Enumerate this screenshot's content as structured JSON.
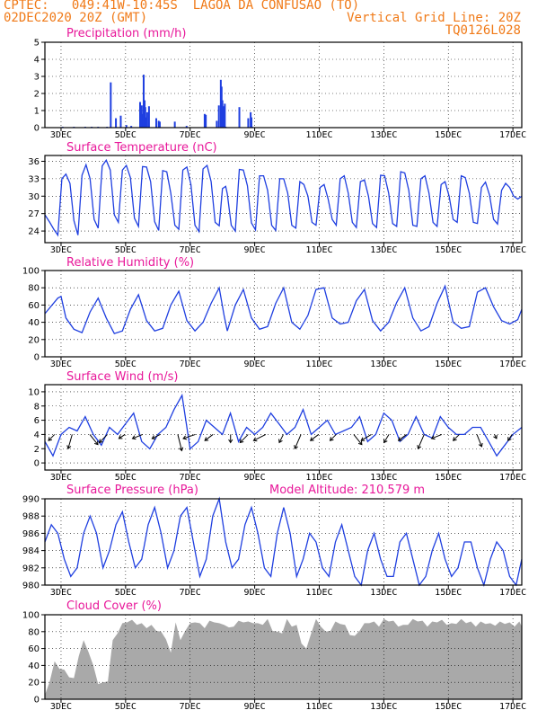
{
  "header": {
    "line1": "CPTEC:   049:41W-10:45S  LAGOA DA CONFUSAO (TO)",
    "line2_left": "02DEC2020 20Z (GMT)",
    "line2_right": "Vertical Grid Line: 20Z",
    "line3_right": "TQ0126L028"
  },
  "colors": {
    "header": "#f07a18",
    "title": "#e8189a",
    "line": "#1f3fe0",
    "cloud": "#a9a9a9",
    "frame": "#000000",
    "grid": "#000000"
  },
  "x_ticks": [
    "3DEC",
    "5DEC",
    "7DEC",
    "9DEC",
    "11DEC",
    "13DEC",
    "15DEC",
    "17DEC"
  ],
  "chart_data": [
    {
      "type": "bar",
      "title": "Precipitation (mm/h)",
      "xlabel": "",
      "ylabel": "",
      "ylim": [
        0,
        5
      ],
      "yticks": [
        0,
        1,
        2,
        3,
        4,
        5
      ],
      "x_unit": "days since 02DEC2020 20Z",
      "series": [
        {
          "x": [
            1.1,
            1.8,
            2.5,
            2.9,
            3.3,
            3.85,
            4.08,
            4.4,
            4.7,
            5.05,
            5.35,
            5.9,
            6.0,
            6.08,
            6.12,
            6.18,
            6.22,
            6.27,
            6.34,
            6.45,
            6.9,
            7.05,
            7.12,
            8.05,
            8.78,
            9.9,
            9.97,
            10.65,
            10.78,
            10.9,
            10.95,
            11.0,
            11.05,
            11.1,
            11.15,
            11.2,
            12.05,
            12.6,
            12.75,
            12.8,
            12.85
          ],
          "values": [
            0.05,
            0.05,
            0.05,
            0.05,
            0.05,
            0.05,
            2.65,
            0.55,
            0.7,
            0.15,
            0.1,
            1.5,
            1.3,
            0.8,
            3.1,
            1.6,
            1.2,
            0.6,
            0.9,
            1.25,
            0.55,
            0.4,
            0.35,
            0.35,
            0.1,
            0.8,
            0.75,
            0.4,
            1.3,
            2.8,
            2.4,
            1.6,
            1.05,
            1.25,
            1.4,
            0.05,
            1.2,
            0.55,
            0.9,
            0.6,
            0.05
          ]
        }
      ]
    },
    {
      "type": "line",
      "title": "Surface Temperature (nC)",
      "ylim": [
        22,
        37
      ],
      "yticks": [
        24,
        27,
        30,
        33,
        36
      ],
      "x_unit": "days since 02DEC2020 20Z",
      "series": [
        {
          "x": [
            0,
            0.3,
            0.55,
            0.8,
            1.05,
            1.3,
            1.55,
            1.8,
            2.05,
            2.3,
            2.55,
            2.8,
            3.05,
            3.3,
            3.55,
            3.8,
            4.05,
            4.3,
            4.55,
            4.8,
            5.05,
            5.3,
            5.55,
            5.8,
            6.05,
            6.3,
            6.55,
            6.8,
            7.05,
            7.3,
            7.55,
            7.8,
            8.05,
            8.3,
            8.55,
            8.8,
            9.05,
            9.3,
            9.55,
            9.8,
            10.05,
            10.3,
            10.55,
            10.8,
            11.0,
            11.2,
            11.3,
            11.55,
            11.8,
            12.05,
            12.3,
            12.55,
            12.8,
            13.05,
            13.3,
            13.55,
            13.8,
            14.05,
            14.3,
            14.55,
            14.8,
            15.05,
            15.3,
            15.55,
            15.8,
            16.05,
            16.3,
            16.55,
            16.8,
            17.05,
            17.3,
            17.55,
            17.8,
            18.05,
            18.3,
            18.55,
            18.8,
            19.05,
            19.3,
            19.55,
            19.8,
            20.05,
            20.3,
            20.55,
            20.8,
            21.05,
            21.3,
            21.55,
            21.8,
            22.05,
            22.3,
            22.55,
            22.8,
            23.05,
            23.3,
            23.55,
            23.8,
            24.05,
            24.3,
            24.55,
            24.8,
            25.05,
            25.3,
            25.55,
            25.8,
            26.05,
            26.3,
            26.55,
            26.8,
            27.05,
            27.3,
            27.55,
            27.8,
            28.05,
            28.3,
            28.55,
            28.8,
            29.05,
            29.3,
            29.55
          ],
          "values": [
            26.8,
            25.5,
            24.3,
            23.3,
            33.0,
            33.8,
            32.2,
            25.8,
            23.3,
            33.6,
            35.4,
            33.0,
            26.0,
            24.5,
            35.2,
            36.2,
            34.5,
            26.8,
            25.5,
            34.5,
            35.3,
            33.2,
            26.2,
            24.8,
            35.1,
            35.0,
            32.5,
            25.6,
            24.1,
            34.4,
            34.2,
            30.5,
            25.0,
            24.3,
            34.5,
            35.0,
            32.0,
            25.0,
            23.9,
            34.7,
            35.3,
            32.5,
            25.5,
            24.9,
            31.3,
            31.7,
            30.4,
            25.0,
            24.0,
            34.6,
            34.5,
            31.8,
            25.4,
            24.2,
            33.5,
            33.5,
            31.0,
            25.0,
            24.1,
            33.0,
            33.0,
            30.5,
            25.0,
            24.5,
            32.5,
            32.0,
            30.0,
            25.5,
            25.0,
            31.5,
            32.0,
            29.5,
            26.0,
            25.0,
            33.0,
            33.5,
            30.5,
            25.5,
            24.6,
            32.5,
            32.8,
            30.0,
            25.3,
            24.6,
            33.6,
            33.5,
            30.5,
            25.3,
            24.8,
            34.2,
            34.0,
            31.0,
            25.0,
            24.8,
            33.0,
            33.5,
            30.5,
            25.5,
            24.8,
            32.0,
            32.5,
            30.0,
            26.0,
            25.5,
            33.5,
            33.2,
            30.5,
            25.5,
            25.3,
            31.5,
            32.4,
            30.2,
            26.0,
            25.2,
            31.0,
            32.2,
            31.5,
            30.0,
            29.5,
            30.0
          ]
        }
      ]
    },
    {
      "type": "line",
      "title": "Relative Humidity (%)",
      "ylim": [
        0,
        100
      ],
      "yticks": [
        0,
        20,
        40,
        60,
        80,
        100
      ],
      "x_unit": "days since 02DEC2020 20Z",
      "series": [
        {
          "x": [
            0,
            0.8,
            1.0,
            1.3,
            1.8,
            2.3,
            2.8,
            3.3,
            3.8,
            4.3,
            4.8,
            5.3,
            5.8,
            6.3,
            6.8,
            7.3,
            7.8,
            8.3,
            8.8,
            9.3,
            9.8,
            10.3,
            10.8,
            11.1,
            11.3,
            11.8,
            12.3,
            12.8,
            13.3,
            13.8,
            14.3,
            14.8,
            15.3,
            15.8,
            16.3,
            16.8,
            17.3,
            17.8,
            18.3,
            18.8,
            19.3,
            19.8,
            20.3,
            20.8,
            21.3,
            21.8,
            22.3,
            22.8,
            23.3,
            23.8,
            24.3,
            24.8,
            25.3,
            25.8,
            26.3,
            26.8,
            27.3,
            27.8,
            28.3,
            28.8,
            29.3,
            29.55
          ],
          "values": [
            50,
            68,
            70,
            45,
            32,
            28,
            52,
            68,
            45,
            27,
            30,
            55,
            72,
            42,
            30,
            33,
            60,
            76,
            42,
            30,
            40,
            62,
            80,
            48,
            30,
            60,
            78,
            45,
            32,
            35,
            62,
            80,
            40,
            32,
            48,
            78,
            80,
            45,
            38,
            40,
            65,
            78,
            42,
            30,
            40,
            63,
            80,
            45,
            30,
            35,
            62,
            82,
            40,
            33,
            35,
            75,
            80,
            58,
            42,
            38,
            43,
            55
          ]
        }
      ]
    },
    {
      "type": "line",
      "title": "Surface Wind (m/s)",
      "ylim": [
        -1,
        11
      ],
      "yticks": [
        0,
        2,
        4,
        6,
        8,
        10
      ],
      "x_unit": "days since 02DEC2020 20Z",
      "series": [
        {
          "x": [
            0,
            0.5,
            1.0,
            1.5,
            2.0,
            2.5,
            3.0,
            3.5,
            4.0,
            4.5,
            5.0,
            5.5,
            6.0,
            6.5,
            7.0,
            7.5,
            8.0,
            8.5,
            9.0,
            9.5,
            10.0,
            10.5,
            11.0,
            11.5,
            12.0,
            12.5,
            13.0,
            13.5,
            14.0,
            14.5,
            15.0,
            15.5,
            16.0,
            16.5,
            17.0,
            17.5,
            18.0,
            18.5,
            19.0,
            19.5,
            20.0,
            20.5,
            21.0,
            21.5,
            22.0,
            22.5,
            23.0,
            23.5,
            24.0,
            24.5,
            25.0,
            25.5,
            26.0,
            26.5,
            27.0,
            27.5,
            28.0,
            28.5,
            29.0,
            29.55
          ],
          "values": [
            3,
            1,
            4,
            5,
            4.5,
            6.5,
            4,
            2.5,
            5,
            4,
            5.5,
            7,
            3,
            2,
            4,
            5,
            7.5,
            9.5,
            2,
            3,
            6,
            5,
            4,
            7,
            3,
            5,
            4,
            5,
            7,
            5.5,
            4,
            5,
            7.5,
            4,
            5,
            6,
            4,
            4.5,
            5,
            6.5,
            3,
            4,
            7,
            6,
            3,
            4,
            6.5,
            4,
            3.5,
            6.5,
            5,
            4,
            4,
            5,
            5,
            3,
            1,
            2.5,
            4,
            5
          ]
        }
      ],
      "arrows_u": [
        -1.5,
        -1,
        2,
        -2,
        -1.5,
        -2.5,
        -2,
        1,
        -3,
        -2,
        0,
        -2,
        -3,
        -1,
        -1.5,
        -2,
        -1.5,
        2,
        -2.5,
        -1.2,
        -2,
        -1.5,
        -2.5,
        -1.5,
        1.2,
        0.5,
        -1
      ],
      "arrows_v": [
        -1.5,
        -3.5,
        -2.5,
        -2,
        -1,
        -1,
        -1,
        -4,
        -1,
        -1.5,
        -2,
        -2,
        -1.5,
        -2,
        -3.5,
        -1.5,
        -1.5,
        -2.5,
        -1.5,
        -2,
        -1.5,
        -3.5,
        -1,
        -1.5,
        -3,
        -1,
        -1.5
      ]
    },
    {
      "type": "line",
      "title": "Surface Pressure (hPa)",
      "annotation": "Model Altitude: 210.579 m",
      "ylim": [
        980,
        990
      ],
      "yticks": [
        980,
        982,
        984,
        986,
        988,
        990
      ],
      "x_unit": "days since 02DEC2020 20Z",
      "series": [
        {
          "x": [
            0,
            0.4,
            0.8,
            1.2,
            1.6,
            2.0,
            2.4,
            2.8,
            3.2,
            3.6,
            4.0,
            4.4,
            4.8,
            5.2,
            5.6,
            6.0,
            6.4,
            6.8,
            7.2,
            7.6,
            8.0,
            8.4,
            8.8,
            9.2,
            9.6,
            10.0,
            10.4,
            10.8,
            11.2,
            11.6,
            12.0,
            12.4,
            12.8,
            13.2,
            13.6,
            14.0,
            14.4,
            14.8,
            15.2,
            15.6,
            16.0,
            16.4,
            16.8,
            17.2,
            17.6,
            18.0,
            18.4,
            18.8,
            19.2,
            19.6,
            20.0,
            20.4,
            20.8,
            21.2,
            21.6,
            22.0,
            22.4,
            22.8,
            23.2,
            23.6,
            24.0,
            24.4,
            24.8,
            25.2,
            25.6,
            26.0,
            26.4,
            26.8,
            27.2,
            27.6,
            28.0,
            28.4,
            28.8,
            29.2,
            29.55
          ],
          "values": [
            985,
            987,
            986,
            983,
            981,
            982,
            986,
            988,
            986,
            982,
            984,
            987,
            988.5,
            985,
            982,
            983,
            987,
            989,
            986,
            982,
            984,
            988,
            989,
            985,
            981,
            983,
            988,
            990,
            985,
            982,
            983,
            987,
            989,
            986,
            982,
            981,
            986,
            989,
            986,
            981,
            983,
            986,
            985,
            982,
            981,
            985,
            987,
            984,
            981,
            980,
            984,
            986,
            983,
            981,
            981,
            985,
            986,
            983,
            980,
            981,
            984,
            986,
            983,
            981,
            982,
            985,
            985,
            982,
            980,
            983,
            985,
            984,
            981,
            980,
            983
          ]
        }
      ]
    },
    {
      "type": "area",
      "title": "Cloud Cover (%)",
      "ylim": [
        0,
        100
      ],
      "yticks": [
        0,
        20,
        40,
        60,
        80,
        100
      ],
      "x_unit": "days since 02DEC2020 20Z",
      "series": [
        {
          "x": [
            0,
            0.3,
            0.6,
            0.9,
            1.2,
            1.5,
            1.8,
            2.1,
            2.4,
            2.7,
            3.0,
            3.3,
            3.6,
            3.9,
            4.2,
            4.5,
            4.8,
            5.1,
            5.4,
            5.7,
            6.0,
            6.3,
            6.6,
            6.9,
            7.2,
            7.5,
            7.8,
            8.1,
            8.4,
            8.7,
            9.0,
            9.3,
            9.6,
            9.9,
            10.2,
            10.5,
            10.8,
            11.1,
            11.4,
            11.7,
            12.0,
            12.3,
            12.6,
            12.9,
            13.2,
            13.5,
            13.8,
            14.1,
            14.4,
            14.7,
            15.0,
            15.3,
            15.6,
            15.9,
            16.2,
            16.5,
            16.8,
            17.1,
            17.4,
            17.7,
            18.0,
            18.3,
            18.6,
            18.9,
            19.2,
            19.5,
            19.8,
            20.1,
            20.4,
            20.7,
            21.0,
            21.3,
            21.6,
            21.9,
            22.2,
            22.5,
            22.8,
            23.1,
            23.4,
            23.7,
            24.0,
            24.3,
            24.6,
            24.9,
            25.2,
            25.5,
            25.8,
            26.1,
            26.4,
            26.7,
            27.0,
            27.3,
            27.6,
            27.9,
            28.2,
            28.5,
            28.8,
            29.1,
            29.4,
            29.55
          ],
          "values": [
            5,
            25,
            45,
            40,
            35,
            30,
            25,
            55,
            70,
            60,
            40,
            22,
            20,
            25,
            70,
            82,
            90,
            95,
            94,
            92,
            90,
            88,
            88,
            85,
            80,
            75,
            55,
            95,
            70,
            85,
            90,
            95,
            90,
            88,
            93,
            95,
            90,
            92,
            85,
            90,
            93,
            95,
            92,
            94,
            90,
            92,
            95,
            85,
            80,
            82,
            95,
            90,
            88,
            70,
            60,
            82,
            95,
            90,
            80,
            85,
            92,
            93,
            88,
            80,
            75,
            85,
            90,
            94,
            92,
            90,
            95,
            96,
            93,
            90,
            88,
            92,
            95,
            96,
            93,
            90,
            92,
            95,
            94,
            92,
            90,
            93,
            95,
            94,
            92,
            90,
            92,
            93,
            90,
            91,
            92,
            93,
            91,
            90,
            92,
            90
          ]
        }
      ]
    }
  ]
}
